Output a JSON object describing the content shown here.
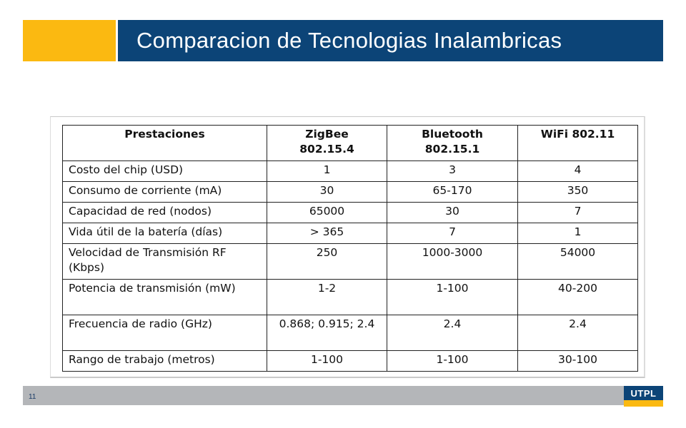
{
  "title": "Comparacion de Tecnologias Inalambricas",
  "page_number": "11",
  "logo_text": "UTPL",
  "colors": {
    "accent_yellow": "#fbb911",
    "title_blue": "#0c4477",
    "footer_gray": "#b4b6b9"
  },
  "table": {
    "headers": [
      "Prestaciones",
      "ZigBee\n802.15.4",
      "Bluetooth\n802.15.1",
      "WiFi 802.11"
    ],
    "rows": [
      [
        "Costo del chip (USD)",
        "1",
        "3",
        "4"
      ],
      [
        "Consumo de corriente (mA)",
        "30",
        "65-170",
        "350"
      ],
      [
        "Capacidad de red (nodos)",
        "65000",
        "30",
        "7"
      ],
      [
        "Vida útil de la batería (días)",
        "> 365",
        "7",
        "1"
      ],
      [
        "Velocidad de Transmisión RF (Kbps)",
        "250",
        "1000-3000",
        "54000"
      ],
      [
        "Potencia de transmisión (mW)",
        "1-2",
        "1-100",
        "40-200"
      ],
      [
        "Frecuencia de radio (GHz)",
        "0.868; 0.915; 2.4",
        "2.4",
        "2.4"
      ],
      [
        "Rango de trabajo (metros)",
        "1-100",
        "1-100",
        "30-100"
      ]
    ]
  }
}
